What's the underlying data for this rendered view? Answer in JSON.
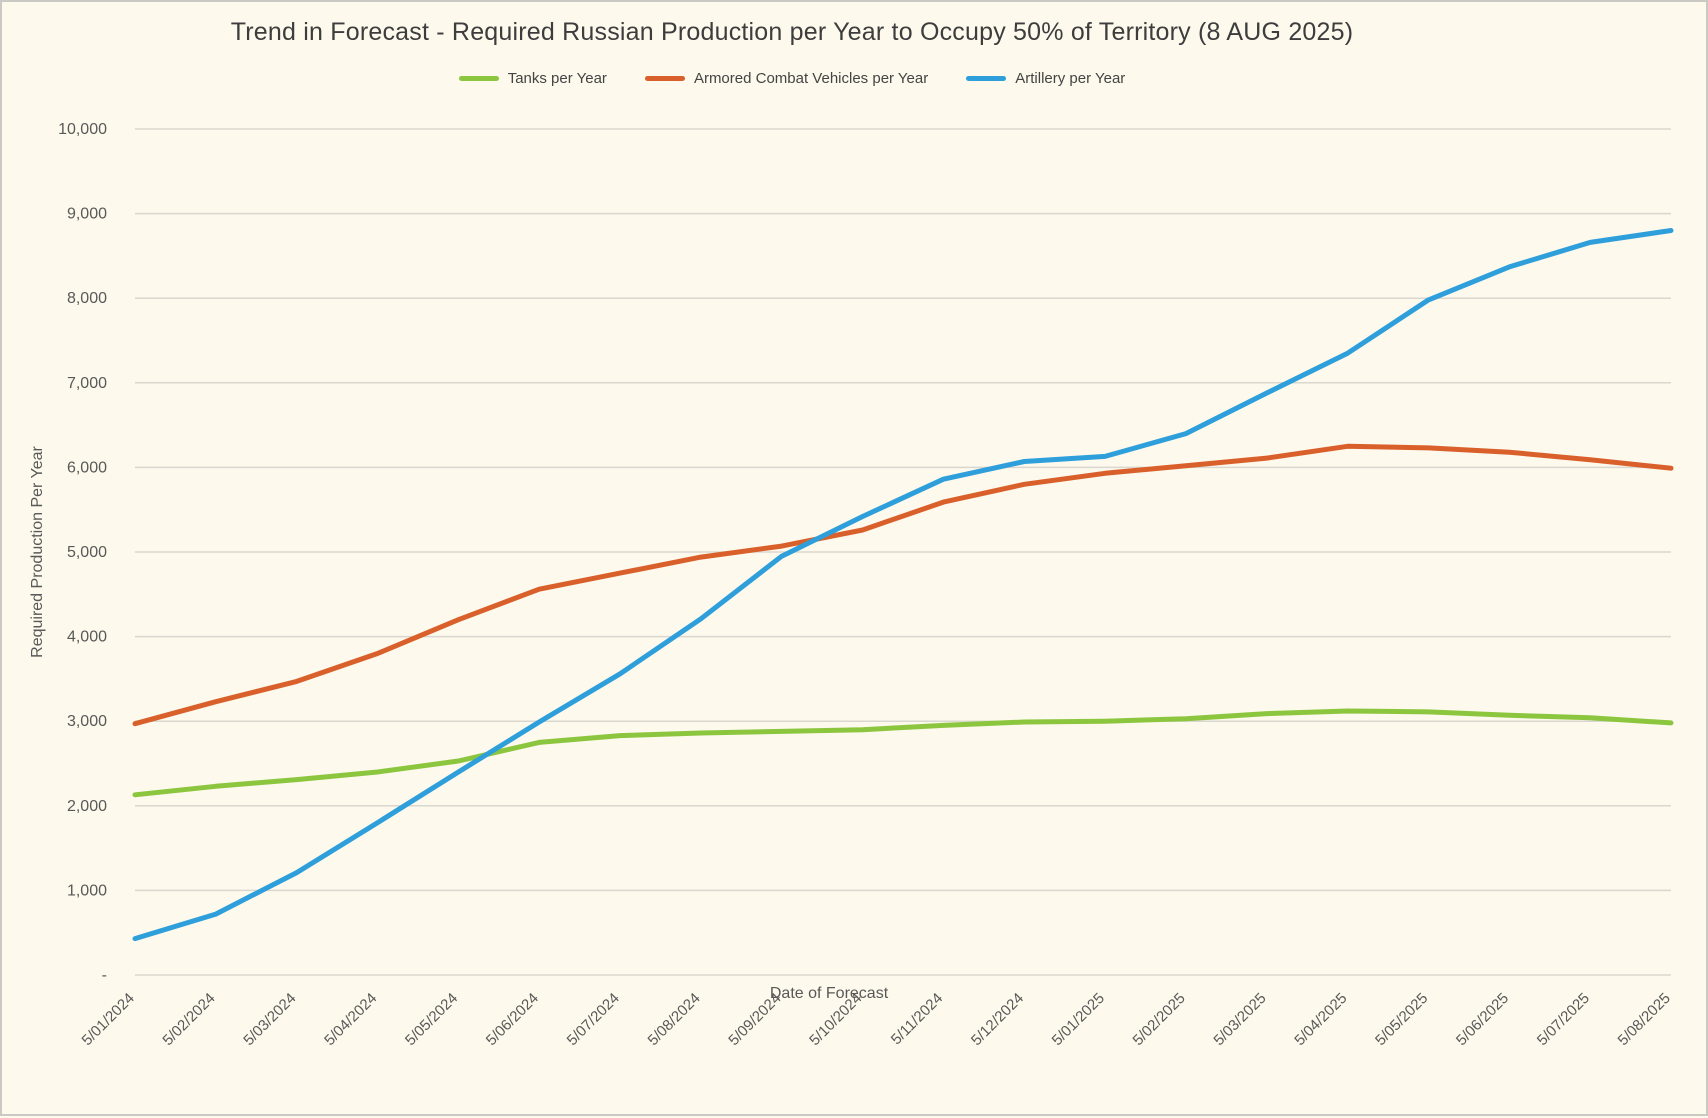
{
  "title": "Trend in Forecast - Required Russian Production per Year to Occupy 50% of Territory (8 AUG 2025)",
  "colors": {
    "background": "#fdf9ec",
    "border": "#cbc9c3",
    "gridline": "#d9d7d0",
    "title_text": "#3d3d3d",
    "axis_text": "#595959",
    "tanks": "#8cc63f",
    "acv": "#d9602b",
    "artillery": "#2e9fdb"
  },
  "chart_data": {
    "type": "line",
    "title": "Trend in Forecast - Required Russian Production per Year to Occupy 50% of Territory (8 AUG 2025)",
    "xlabel": "Date of Forecast",
    "ylabel": "Required Production Per Year",
    "ylim": [
      0,
      10000
    ],
    "grid": true,
    "legend_position": "top",
    "y_tick_labels": [
      "-",
      "1,000",
      "2,000",
      "3,000",
      "4,000",
      "5,000",
      "6,000",
      "7,000",
      "8,000",
      "9,000",
      "10,000"
    ],
    "categories": [
      "5/01/2024",
      "5/02/2024",
      "5/03/2024",
      "5/04/2024",
      "5/05/2024",
      "5/06/2024",
      "5/07/2024",
      "5/08/2024",
      "5/09/2024",
      "5/10/2024",
      "5/11/2024",
      "5/12/2024",
      "5/01/2025",
      "5/02/2025",
      "5/03/2025",
      "5/04/2025",
      "5/05/2025",
      "5/06/2025",
      "5/07/2025",
      "5/08/2025"
    ],
    "series": [
      {
        "name": "Tanks per Year",
        "color": "#8cc63f",
        "values": [
          2130,
          2230,
          2310,
          2400,
          2530,
          2750,
          2830,
          2860,
          2880,
          2900,
          2950,
          2990,
          3000,
          3030,
          3090,
          3120,
          3110,
          3070,
          3040,
          2980
        ]
      },
      {
        "name": "Armored Combat Vehicles per Year",
        "color": "#d9602b",
        "values": [
          2970,
          3230,
          3470,
          3800,
          4200,
          4560,
          4750,
          4940,
          5070,
          5260,
          5590,
          5800,
          5930,
          6020,
          6110,
          6250,
          6230,
          6180,
          6090,
          5990
        ]
      },
      {
        "name": "Artillery per Year",
        "color": "#2e9fdb",
        "values": [
          430,
          720,
          1210,
          1800,
          2400,
          2990,
          3560,
          4210,
          4950,
          5420,
          5860,
          6070,
          6130,
          6400,
          6880,
          7350,
          7980,
          8370,
          8660,
          8800
        ]
      }
    ]
  }
}
